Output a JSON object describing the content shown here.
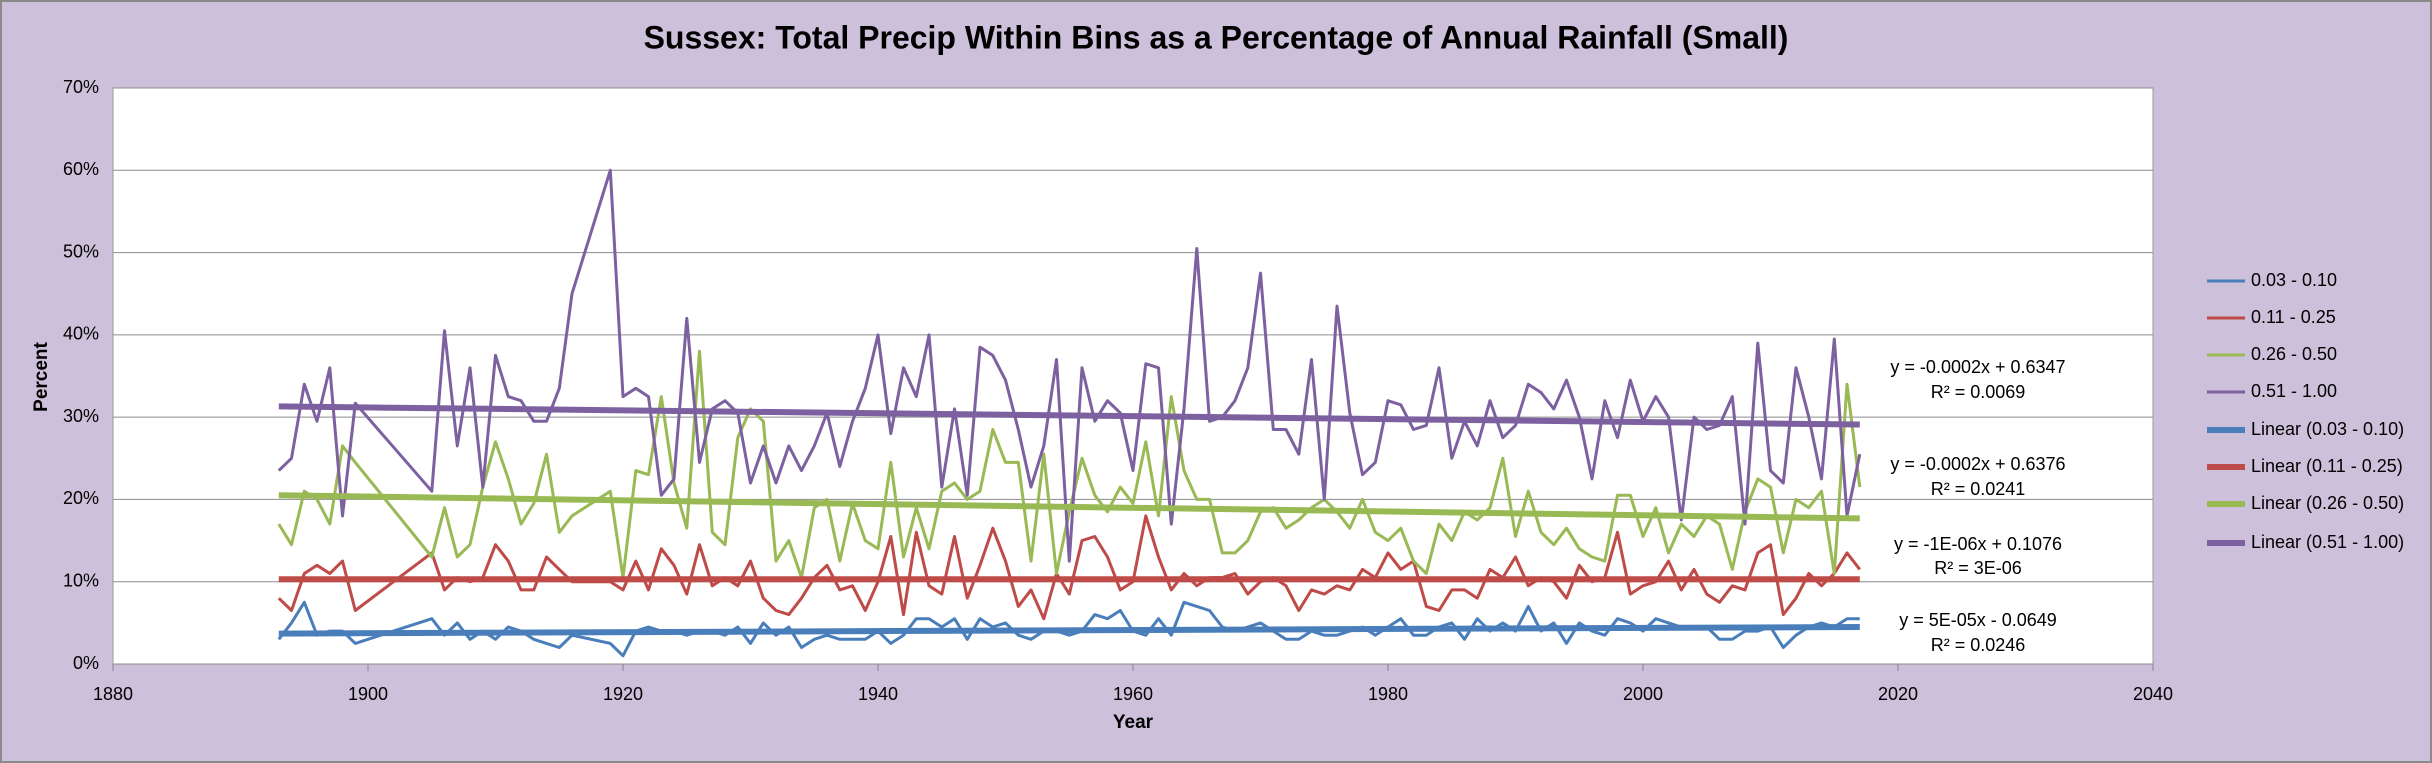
{
  "chart_data": {
    "type": "line",
    "title": "Sussex: Total Precip Within Bins as a Percentage of Annual Rainfall (Small)",
    "x_label": "Year",
    "y_label": "Percent",
    "xlim": [
      1880,
      2040
    ],
    "xticks": [
      1880,
      1900,
      1920,
      1940,
      1960,
      1980,
      2000,
      2020,
      2040
    ],
    "ylim": [
      0,
      70
    ],
    "yticks": [
      {
        "value": 0,
        "label": "0%"
      },
      {
        "value": 10,
        "label": "10%"
      },
      {
        "value": 20,
        "label": "20%"
      },
      {
        "value": 30,
        "label": "30%"
      },
      {
        "value": 40,
        "label": "40%"
      },
      {
        "value": 50,
        "label": "50%"
      },
      {
        "value": 60,
        "label": "60%"
      },
      {
        "value": 70,
        "label": "70%"
      }
    ],
    "grid": true,
    "legend": "right",
    "x": [
      1893,
      1894,
      1895,
      1896,
      1897,
      1898,
      1899,
      1905,
      1906,
      1907,
      1908,
      1909,
      1910,
      1911,
      1912,
      1913,
      1914,
      1915,
      1916,
      1919,
      1920,
      1921,
      1922,
      1923,
      1924,
      1925,
      1926,
      1927,
      1928,
      1929,
      1930,
      1931,
      1932,
      1933,
      1934,
      1935,
      1936,
      1937,
      1938,
      1939,
      1940,
      1941,
      1942,
      1943,
      1944,
      1945,
      1946,
      1947,
      1948,
      1949,
      1950,
      1951,
      1952,
      1953,
      1954,
      1955,
      1956,
      1957,
      1958,
      1959,
      1960,
      1961,
      1962,
      1963,
      1964,
      1965,
      1966,
      1967,
      1968,
      1969,
      1970,
      1971,
      1972,
      1973,
      1974,
      1975,
      1976,
      1977,
      1978,
      1979,
      1980,
      1981,
      1982,
      1983,
      1984,
      1985,
      1986,
      1987,
      1988,
      1989,
      1990,
      1991,
      1992,
      1993,
      1994,
      1995,
      1996,
      1997,
      1998,
      1999,
      2000,
      2001,
      2002,
      2003,
      2004,
      2005,
      2006,
      2007,
      2008,
      2009,
      2010,
      2011,
      2012,
      2013,
      2014,
      2015,
      2016,
      2017
    ],
    "series": [
      {
        "name": "0.03 - 0.10",
        "color": "#4a7ebb",
        "values": [
          3,
          5,
          7.5,
          3.5,
          4,
          4,
          2.5,
          5.5,
          3.5,
          5,
          3,
          4,
          3,
          4.5,
          4,
          3,
          2.5,
          2,
          3.5,
          2.5,
          1,
          4,
          4.5,
          4,
          4,
          3.5,
          4,
          4,
          3.5,
          4.5,
          2.5,
          5,
          3.5,
          4.5,
          2,
          3,
          3.5,
          3,
          3,
          3,
          4,
          2.5,
          3.5,
          5.5,
          5.5,
          4.5,
          5.5,
          3,
          5.5,
          4.5,
          5,
          3.5,
          3,
          4,
          4,
          3.5,
          4,
          6,
          5.5,
          6.5,
          4,
          3.5,
          5.5,
          3.5,
          7.5,
          7,
          6.5,
          4.5,
          4,
          4.5,
          5,
          4,
          3,
          3,
          4,
          3.5,
          3.5,
          4,
          4.5,
          3.5,
          4.5,
          5.5,
          3.5,
          3.5,
          4.5,
          5,
          3,
          5.5,
          4,
          5,
          4,
          7,
          4,
          5,
          2.5,
          5,
          4,
          3.5,
          5.5,
          5,
          4,
          5.5,
          5,
          4.5,
          4.5,
          4.5,
          3,
          3,
          4,
          4,
          4.5,
          2,
          3.5,
          4.5,
          5,
          4.5,
          5.5,
          5.5
        ]
      },
      {
        "name": "0.11 - 0.25",
        "color": "#be4b48",
        "values": [
          8,
          6.5,
          11,
          12,
          11,
          12.5,
          6.5,
          13.5,
          9,
          10.5,
          10,
          10.5,
          14.5,
          12.5,
          9,
          9,
          13,
          11.5,
          10,
          10,
          9,
          12.5,
          9,
          14,
          12,
          8.5,
          14.5,
          9.5,
          10.5,
          9.5,
          12.5,
          8,
          6.5,
          6,
          8,
          10.5,
          12,
          9,
          9.5,
          6.5,
          10,
          15.5,
          6,
          16,
          9.5,
          8.5,
          15.5,
          8,
          12,
          16.5,
          12.5,
          7,
          9,
          5.5,
          11,
          8.5,
          15,
          15.5,
          13,
          9,
          10,
          18,
          13,
          9,
          11,
          9.5,
          10.5,
          10.5,
          11,
          8.5,
          10,
          10.5,
          9.5,
          6.5,
          9,
          8.5,
          9.5,
          9,
          11.5,
          10.5,
          13.5,
          11.5,
          12.5,
          7,
          6.5,
          9,
          9,
          8,
          11.5,
          10.5,
          13,
          9.5,
          10.5,
          10,
          8,
          12,
          10,
          10.5,
          16,
          8.5,
          9.5,
          10,
          12.5,
          9,
          11.5,
          8.5,
          7.5,
          9.5,
          9,
          13.5,
          14.5,
          6,
          8,
          11,
          9.5,
          11,
          13.5,
          11.5
        ]
      },
      {
        "name": "0.26 - 0.50",
        "color": "#98b954",
        "values": [
          17,
          14.5,
          21,
          20,
          17,
          26.5,
          24.5,
          13,
          19,
          13,
          14.5,
          21.5,
          27,
          22.5,
          17,
          19.5,
          25.5,
          16,
          18,
          21,
          10.5,
          23.5,
          23,
          32.5,
          22,
          16.5,
          38,
          16,
          14.5,
          27.5,
          31,
          29.5,
          12.5,
          15,
          10.5,
          19,
          20,
          12.5,
          19.5,
          15,
          14,
          24.5,
          13,
          19,
          14,
          21,
          22,
          20,
          21,
          28.5,
          24.5,
          24.5,
          12.5,
          25.5,
          11,
          18.5,
          25,
          20.5,
          18.5,
          21.5,
          19.5,
          27,
          18,
          32.5,
          23.5,
          20,
          20,
          13.5,
          13.5,
          15,
          18.5,
          19,
          16.5,
          17.5,
          19,
          20,
          18.5,
          16.5,
          20,
          16,
          15,
          16.5,
          12.5,
          11,
          17,
          15,
          18.5,
          17.5,
          19,
          25,
          15.5,
          21,
          16,
          14.5,
          16.5,
          14,
          13,
          12.5,
          20.5,
          20.5,
          15.5,
          19,
          13.5,
          17,
          15.5,
          18,
          17,
          11.5,
          18.5,
          22.5,
          21.5,
          13.5,
          20,
          19,
          21,
          11,
          34,
          21.5
        ]
      },
      {
        "name": "0.51 - 1.00",
        "color": "#7d60a0",
        "values": [
          23.5,
          25,
          34,
          29.5,
          36,
          18,
          31.7,
          21,
          40.5,
          26.5,
          36,
          21.5,
          37.5,
          32.5,
          32,
          29.5,
          29.5,
          33.5,
          45,
          60,
          32.5,
          33.5,
          32.5,
          20.5,
          22.5,
          42,
          24.5,
          31,
          32,
          30.5,
          22,
          26.5,
          22,
          26.5,
          23.5,
          26.5,
          30.5,
          24,
          29.5,
          33.5,
          40,
          28,
          36,
          32.5,
          40,
          21.5,
          31,
          20.5,
          38.5,
          37.5,
          34.5,
          28.5,
          21.5,
          26.5,
          37,
          12.5,
          36,
          29.5,
          32,
          30.5,
          23.5,
          36.5,
          36,
          17,
          31,
          50.5,
          29.5,
          30,
          32,
          36,
          47.5,
          28.5,
          28.5,
          25.5,
          37,
          20,
          43.5,
          30.5,
          23,
          24.5,
          32,
          31.5,
          28.5,
          29,
          36,
          25,
          29.5,
          26.5,
          32,
          27.5,
          29,
          34,
          33,
          31,
          34.5,
          30,
          22.5,
          32,
          27.5,
          34.5,
          29.5,
          32.5,
          30,
          17.5,
          30,
          28.5,
          29,
          32.5,
          17,
          39,
          23.5,
          22,
          36,
          30,
          22.5,
          39.5,
          18,
          25.5
        ]
      },
      {
        "name": "Linear (0.03 - 0.10)",
        "color": "#4a7ebb",
        "x": [
          1893,
          2017
        ],
        "values": [
          3.7,
          4.5
        ]
      },
      {
        "name": "Linear (0.11 - 0.25)",
        "color": "#be4b48",
        "x": [
          1893,
          2017
        ],
        "values": [
          10.3,
          10.3
        ]
      },
      {
        "name": "Linear (0.26 - 0.50)",
        "color": "#98b954",
        "x": [
          1893,
          2017
        ],
        "values": [
          20.5,
          17.7
        ]
      },
      {
        "name": "Linear (0.51 - 1.00)",
        "color": "#7d60a0",
        "x": [
          1893,
          2017
        ],
        "values": [
          31.3,
          29.1
        ]
      }
    ],
    "annotations": [
      "y = -0.0002x + 0.6347",
      "R² = 0.0069",
      "y = -0.0002x + 0.6376",
      "R² = 0.0241",
      "y = -1E-06x + 0.1076",
      "R² = 3E-06",
      "y = 5E-05x - 0.0649",
      "R² = 0.0246"
    ]
  }
}
